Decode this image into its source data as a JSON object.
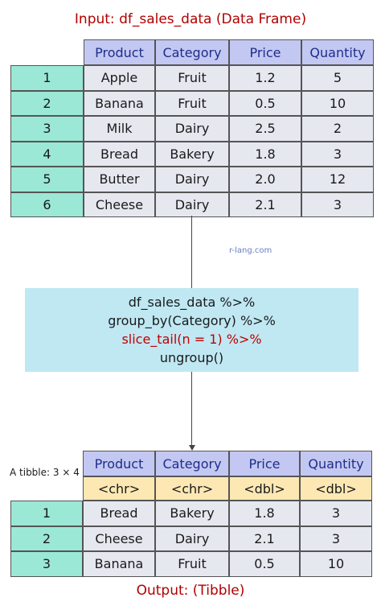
{
  "input_title": {
    "prefix": "Input:",
    "name": "df_sales_data (Data Frame)"
  },
  "input_table": {
    "headers": [
      "Product",
      "Category",
      "Price",
      "Quantity"
    ],
    "row_numbers": [
      "1",
      "2",
      "3",
      "4",
      "5",
      "6"
    ],
    "rows": [
      [
        "Apple",
        "Fruit",
        "1.2",
        "5"
      ],
      [
        "Banana",
        "Fruit",
        "0.5",
        "10"
      ],
      [
        "Milk",
        "Dairy",
        "2.5",
        "2"
      ],
      [
        "Bread",
        "Bakery",
        "1.8",
        "3"
      ],
      [
        "Butter",
        "Dairy",
        "2.0",
        "12"
      ],
      [
        "Cheese",
        "Dairy",
        "2.1",
        "3"
      ]
    ]
  },
  "watermark": "r-lang.com",
  "code": {
    "line1": "df_sales_data %>%",
    "line2": "group_by(Category) %>%",
    "line3": "slice_tail(n = 1) %>%",
    "line4": "ungroup()"
  },
  "output_label": "A tibble: 3 × 4",
  "output_table": {
    "headers": [
      "Product",
      "Category",
      "Price",
      "Quantity"
    ],
    "types": [
      "<chr>",
      "<chr>",
      "<dbl>",
      "<dbl>"
    ],
    "row_numbers": [
      "1",
      "2",
      "3"
    ],
    "rows": [
      [
        "Bread",
        "Bakery",
        "1.8",
        "3"
      ],
      [
        "Cheese",
        "Dairy",
        "2.1",
        "3"
      ],
      [
        "Banana",
        "Fruit",
        "0.5",
        "10"
      ]
    ]
  },
  "output_title": {
    "prefix": "Output:",
    "name": "(Tibble)"
  },
  "colors": {
    "title_red": "#b00000",
    "header_bg": "#c3c8f2",
    "header_text": "#1f2d8a",
    "body_bg": "#e6e8f0",
    "index_bg": "#9be8d6",
    "type_bg": "#fde8b4",
    "code_bg": "#bfe8f3",
    "highlight": "#c00000"
  }
}
